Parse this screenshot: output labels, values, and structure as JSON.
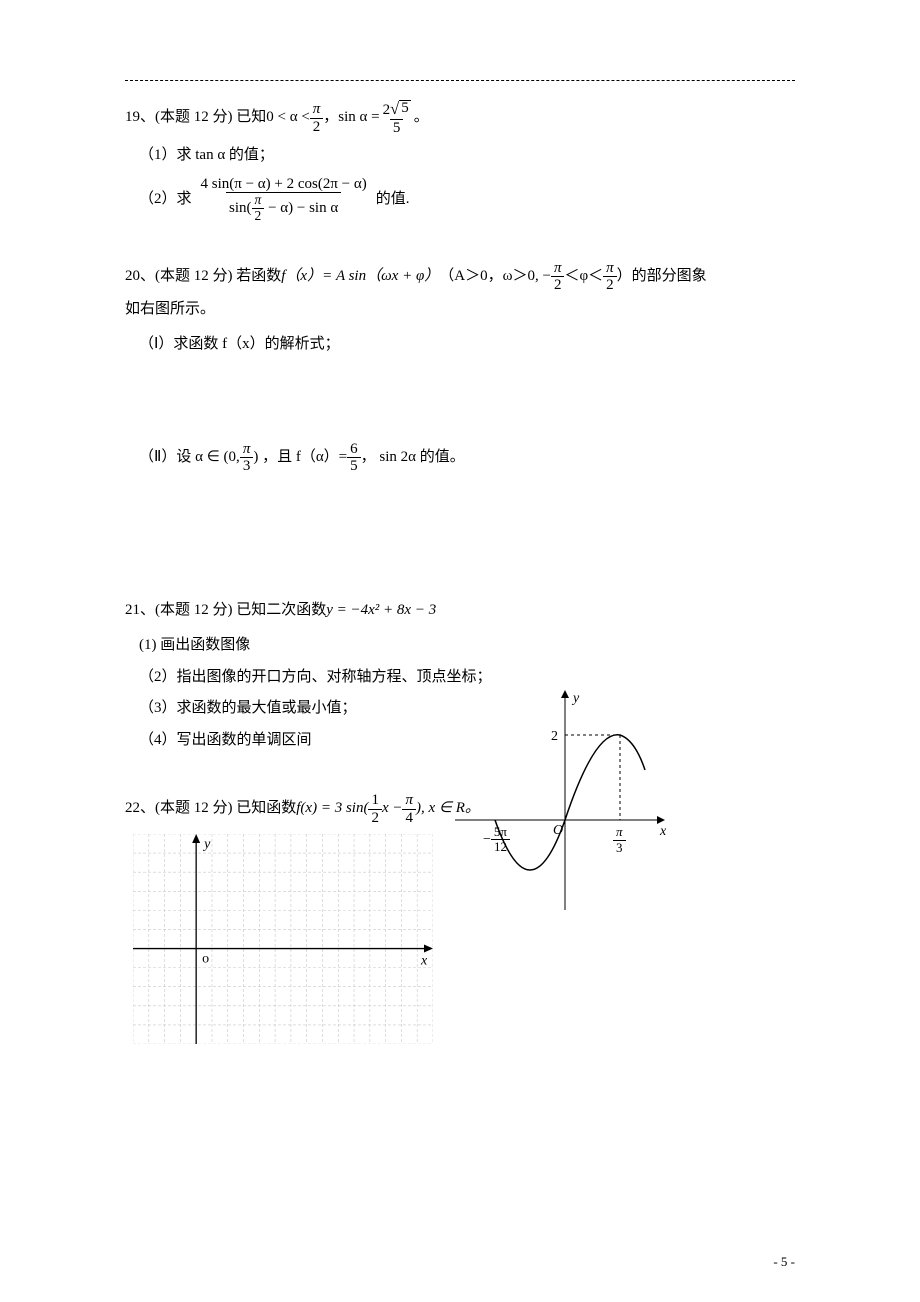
{
  "q19": {
    "head_pre": "19、(本题 12 分) 已知",
    "head_lt": "0 < α <",
    "head_frac_num": "π",
    "head_frac_den": "2",
    "head_comma": "，sin α =",
    "sin_num_a": "2",
    "sin_sqrt_arg": "5",
    "sin_den": "5",
    "head_period": "。",
    "p1": "（1）求 tan α 的值；",
    "p2_pre": "（2）求",
    "p2_frac_num": "4 sin(π − α) + 2 cos(2π − α)",
    "p2_frac_den_a": "sin(",
    "p2_frac_den_frac_num": "π",
    "p2_frac_den_frac_den": "2",
    "p2_frac_den_b": " − α) − sin α",
    "p2_post": "的值."
  },
  "q20": {
    "head_pre": "20、(本题 12 分) 若函数 ",
    "fx": "f（x）= A sin（ωx + φ）",
    "cond_open": "（A＞0，ω＞0, −",
    "phi_lo_num": "π",
    "phi_lo_den": "2",
    "lt1": "＜φ＜",
    "phi_hi_num": "π",
    "phi_hi_den": "2",
    "cond_close": "）的部分图象",
    "tail": "如右图所示。",
    "p1": "（Ⅰ）求函数 f（x）的解析式；",
    "p2_pre": "（Ⅱ）设 α ∈ (0,",
    "p2_frac_num": "π",
    "p2_frac_den": "3",
    "p2_mid_a": ") ，且 f（α）=",
    "p2_val_num": "6",
    "p2_val_den": "5",
    "p2_mid_b": "， sin 2α 的值。",
    "graph": {
      "y_axis_label": "y",
      "x_axis_label": "x",
      "origin": "O",
      "y_tick": "2",
      "x_left_num": "5π",
      "x_left_den": "12",
      "x_right_num": "π",
      "x_right_den": "3",
      "stroke": "#000000",
      "bg": "#ffffff"
    }
  },
  "q21": {
    "head": "21、(本题 12 分) 已知二次函数 ",
    "fn": "y = −4x² + 8x − 3",
    "p1": "(1) 画出函数图像",
    "p2": "（2）指出图像的开口方向、对称轴方程、顶点坐标；",
    "p3": "（3）求函数的最大值或最小值；",
    "p4": "（4）写出函数的单调区间"
  },
  "q22": {
    "head_pre": "22、(本题 12 分) 已知函数 ",
    "fn_a": "f(x) = 3 sin(",
    "fn_frac1_num": "1",
    "fn_frac1_den": "2",
    "fn_b": "x −",
    "fn_frac2_num": "π",
    "fn_frac2_den": "4",
    "fn_c": "), x ∈ R。",
    "grid": {
      "y_label": "y",
      "x_label": "x",
      "origin": "o",
      "cols": 19,
      "rows": 11,
      "origin_col": 4,
      "origin_row": 6,
      "line_color": "#c9c9c9",
      "axis_color": "#000000",
      "bg": "#ffffff"
    }
  },
  "page_number": "- 5 -"
}
